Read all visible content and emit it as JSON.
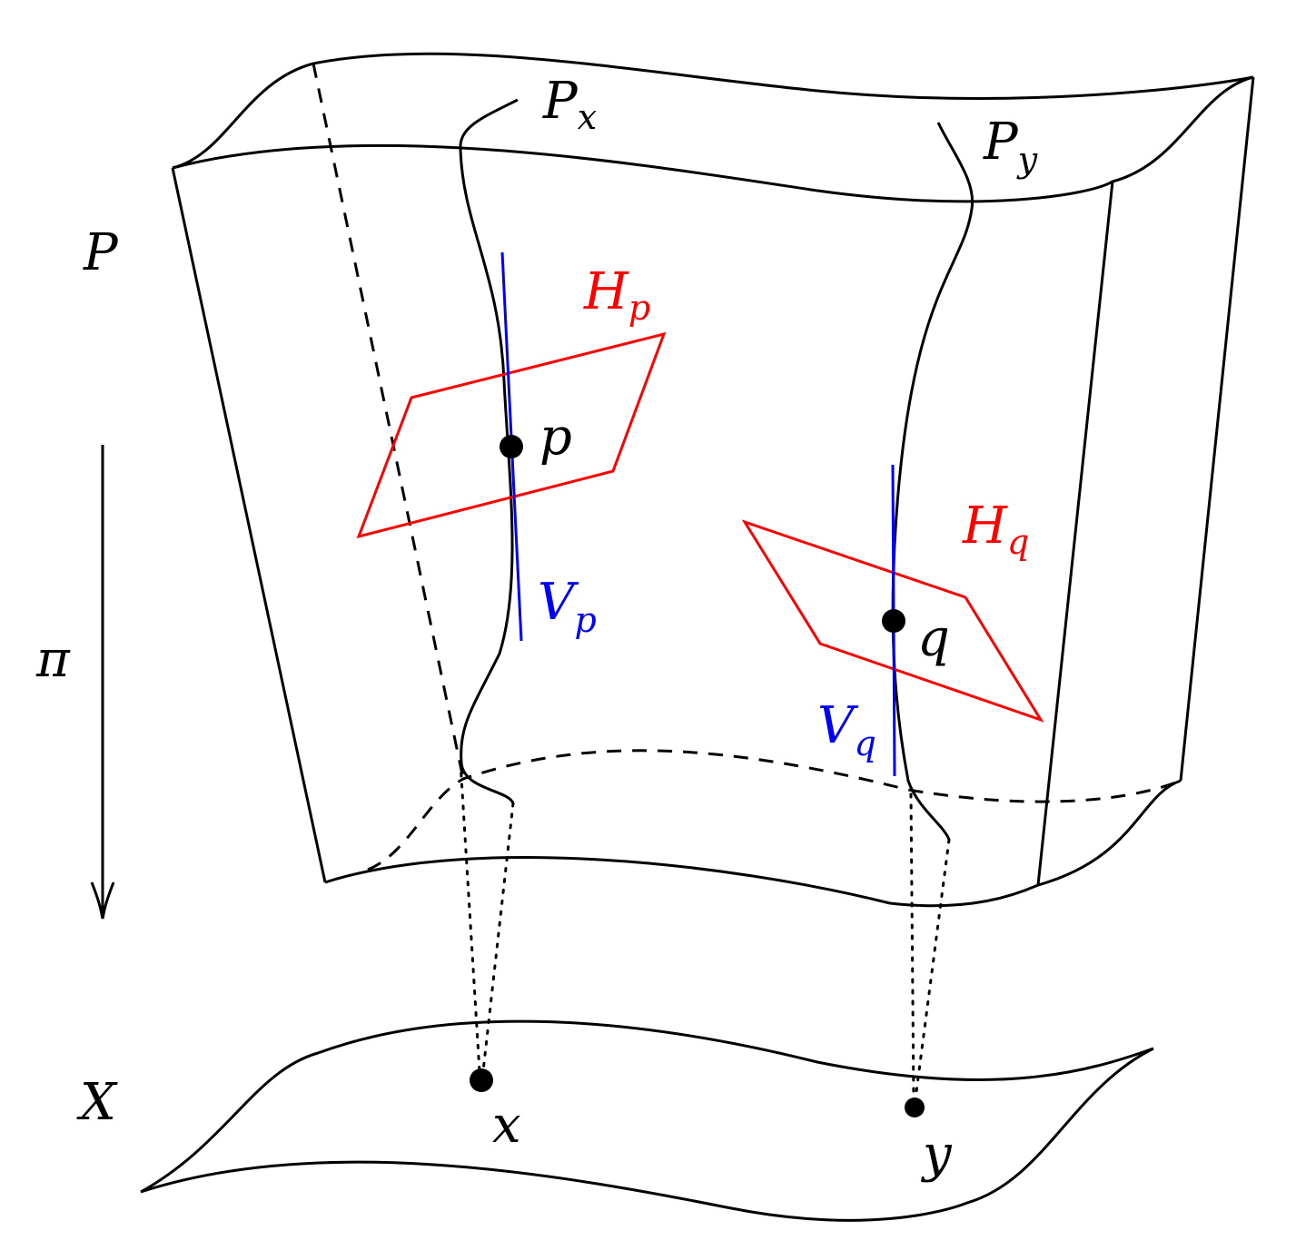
{
  "labels": {
    "P": "P",
    "Px_main": "P",
    "Px_sub": "x",
    "Py_main": "P",
    "Py_sub": "y",
    "Hp_main": "H",
    "Hp_sub": "p",
    "Hq_main": "H",
    "Hq_sub": "q",
    "Vp_main": "V",
    "Vp_sub": "p",
    "Vq_main": "V",
    "Vq_sub": "q",
    "p": "p",
    "q": "q",
    "pi": "π",
    "X": "X",
    "x": "x",
    "y": "y"
  },
  "colors": {
    "ink": "#000000",
    "horizontal": "#ff0000",
    "vertical": "#0000ff"
  }
}
